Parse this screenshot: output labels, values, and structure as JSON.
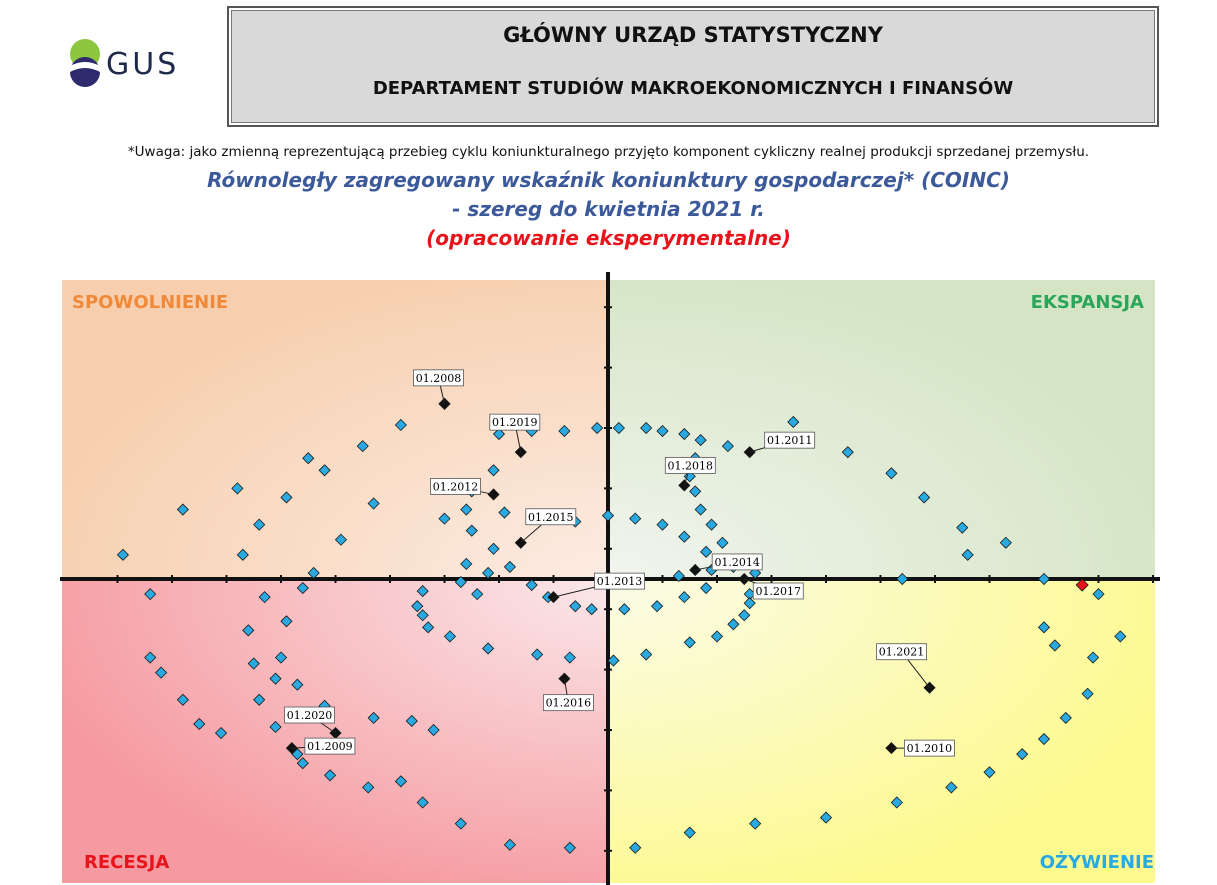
{
  "header": {
    "logo_text": "GUS",
    "line1": "GŁÓWNY URZĄD STATYSTYCZNY",
    "line2": "DEPARTAMENT STUDIÓW MAKROEKONOMICZNYCH I FINANSÓW"
  },
  "note": "*Uwaga: jako zmienną reprezentującą przebieg cyklu koniunkturalnego przyjęto komponent cykliczny realnej produkcji sprzedanej przemysłu.",
  "titles": {
    "line1": "Równoległy zagregowany wskaźnik koniunktury gospodarczej* (COINC)",
    "line2": "- szereg do kwietnia 2021 r.",
    "line3": "(opracowanie eksperymentalne)"
  },
  "colors": {
    "point_fill": "#29a9e0",
    "marker_fill": "#111111",
    "last_point_fill": "#e8131b",
    "title_blue": "#3c5a9a",
    "title_red": "#e8131b",
    "spowolnienie": "#f08a3a",
    "ekspansja": "#2aa65a",
    "recesja": "#e8131b",
    "ozywienie": "#29a9e0"
  },
  "chart_data": {
    "type": "scatter",
    "title": "Równoległy zagregowany wskaźnik koniunktury gospodarczej* (COINC)",
    "xlim": [
      -10,
      10
    ],
    "ylim": [
      -10,
      10
    ],
    "quadrants": {
      "top_left": "SPOWOLNIENIE",
      "top_right": "EKSPANSJA",
      "bottom_left": "RECESJA",
      "bottom_right": "OŻYWIENIE"
    },
    "series": [
      {
        "values": [
          [
            -3.0,
            5.8
          ],
          [
            -3.8,
            5.1
          ],
          [
            -4.5,
            4.4
          ],
          [
            -5.2,
            3.6
          ],
          [
            -5.9,
            2.7
          ],
          [
            -6.4,
            1.8
          ],
          [
            -6.7,
            0.8
          ],
          [
            -6.3,
            -0.6
          ],
          [
            -6.6,
            -1.7
          ],
          [
            -6.5,
            -2.8
          ],
          [
            -6.4,
            -4.0
          ],
          [
            -6.1,
            -4.9
          ],
          [
            -5.7,
            -5.8
          ],
          [
            -5.1,
            -6.5
          ],
          [
            -4.4,
            -6.9
          ],
          [
            -3.8,
            -6.7
          ],
          [
            -3.4,
            -7.4
          ],
          [
            -2.7,
            -8.1
          ],
          [
            -1.8,
            -8.8
          ],
          [
            -0.7,
            -8.9
          ],
          [
            0.5,
            -8.9
          ],
          [
            1.5,
            -8.4
          ],
          [
            2.7,
            -8.1
          ],
          [
            4.0,
            -7.9
          ],
          [
            5.3,
            -7.4
          ],
          [
            6.3,
            -6.9
          ],
          [
            7.0,
            -6.4
          ],
          [
            7.6,
            -5.8
          ],
          [
            8.0,
            -5.3
          ],
          [
            8.4,
            -4.6
          ],
          [
            8.8,
            -3.8
          ],
          [
            8.9,
            -2.6
          ],
          [
            9.4,
            -1.9
          ],
          [
            9.0,
            -0.5
          ],
          [
            -5.6,
            -0.3
          ],
          [
            -5.9,
            -1.4
          ],
          [
            -6.0,
            -2.6
          ],
          [
            -5.7,
            -3.5
          ],
          [
            -5.2,
            -4.2
          ],
          [
            -4.3,
            -4.6
          ],
          [
            -3.2,
            -5.0
          ],
          [
            -3.6,
            -4.7
          ],
          [
            -3.0,
            2.0
          ],
          [
            -4.3,
            2.5
          ],
          [
            -4.9,
            1.3
          ],
          [
            -5.4,
            0.2
          ],
          [
            -2.0,
            4.8
          ],
          [
            -1.4,
            4.9
          ],
          [
            -0.8,
            4.9
          ],
          [
            -0.2,
            5.0
          ],
          [
            0.2,
            5.0
          ],
          [
            0.7,
            5.0
          ],
          [
            1.0,
            4.9
          ],
          [
            1.4,
            4.8
          ],
          [
            1.7,
            4.6
          ],
          [
            2.2,
            4.4
          ],
          [
            1.6,
            4.0
          ],
          [
            1.5,
            3.4
          ],
          [
            1.6,
            2.9
          ],
          [
            1.7,
            2.3
          ],
          [
            1.9,
            1.8
          ],
          [
            2.1,
            1.2
          ],
          [
            2.5,
            0.6
          ],
          [
            2.7,
            0.2
          ],
          [
            2.3,
            0.4
          ],
          [
            1.9,
            0.3
          ],
          [
            1.3,
            0.1
          ],
          [
            -2.1,
            3.6
          ],
          [
            -2.5,
            2.9
          ],
          [
            -2.6,
            2.3
          ],
          [
            -2.5,
            1.6
          ],
          [
            -2.1,
            1.0
          ],
          [
            -1.8,
            0.4
          ],
          [
            -1.4,
            -0.2
          ],
          [
            -1.1,
            -0.6
          ],
          [
            -0.6,
            -0.9
          ],
          [
            -0.3,
            -1.0
          ],
          [
            0.3,
            -1.0
          ],
          [
            0.9,
            -0.9
          ],
          [
            1.4,
            -0.6
          ],
          [
            1.8,
            -0.3
          ],
          [
            -2.2,
            0.2
          ],
          [
            -2.6,
            0.5
          ],
          [
            -1.9,
            2.2
          ],
          [
            0.0,
            2.1
          ],
          [
            0.5,
            2.0
          ],
          [
            1.0,
            1.8
          ],
          [
            1.4,
            1.4
          ],
          [
            1.8,
            0.9
          ],
          [
            -1.2,
            2.1
          ],
          [
            -0.6,
            1.9
          ],
          [
            -2.7,
            -0.1
          ],
          [
            -2.4,
            -0.5
          ],
          [
            2.6,
            -0.5
          ],
          [
            2.6,
            -0.8
          ],
          [
            2.5,
            -1.2
          ],
          [
            2.3,
            -1.5
          ],
          [
            2.0,
            -1.9
          ],
          [
            1.5,
            -2.1
          ],
          [
            0.7,
            -2.5
          ],
          [
            0.1,
            -2.7
          ],
          [
            -0.7,
            -2.6
          ],
          [
            -1.3,
            -2.5
          ],
          [
            -2.2,
            -2.3
          ],
          [
            -2.9,
            -1.9
          ],
          [
            -3.3,
            -1.6
          ],
          [
            -3.4,
            -1.2
          ],
          [
            -3.5,
            -0.9
          ],
          [
            -3.4,
            -0.4
          ],
          [
            -5.5,
            4.0
          ],
          [
            -6.8,
            3.0
          ],
          [
            -7.8,
            2.3
          ],
          [
            -8.9,
            0.8
          ],
          [
            -8.4,
            -0.5
          ],
          [
            -8.4,
            -2.6
          ],
          [
            -8.2,
            -3.1
          ],
          [
            -7.8,
            -4.0
          ],
          [
            -7.5,
            -4.8
          ],
          [
            -7.1,
            -5.1
          ],
          [
            -6.1,
            -3.3
          ],
          [
            -5.6,
            -6.1
          ],
          [
            3.4,
            5.2
          ],
          [
            4.4,
            4.2
          ],
          [
            5.2,
            3.5
          ],
          [
            5.8,
            2.7
          ],
          [
            6.5,
            1.7
          ],
          [
            7.3,
            1.2
          ],
          [
            8.0,
            0.0
          ],
          [
            5.4,
            0.0
          ],
          [
            6.6,
            0.8
          ],
          [
            8.0,
            -1.6
          ],
          [
            8.2,
            -2.2
          ]
        ]
      }
    ],
    "last_point": [
      8.7,
      -0.2
    ],
    "annotated_points": [
      {
        "label": "01.2008",
        "x": -3.0,
        "y": 5.8
      },
      {
        "label": "01.2019",
        "x": -1.6,
        "y": 4.2
      },
      {
        "label": "01.2012",
        "x": -2.1,
        "y": 2.8
      },
      {
        "label": "01.2015",
        "x": -1.6,
        "y": 1.2
      },
      {
        "label": "01.2013",
        "x": -1.0,
        "y": -0.6
      },
      {
        "label": "01.2016",
        "x": -0.8,
        "y": -3.3
      },
      {
        "label": "01.2020",
        "x": -5.0,
        "y": -5.1
      },
      {
        "label": "01.2009",
        "x": -5.8,
        "y": -5.6
      },
      {
        "label": "01.2011",
        "x": 2.6,
        "y": 4.2
      },
      {
        "label": "01.2018",
        "x": 1.4,
        "y": 3.1
      },
      {
        "label": "01.2014",
        "x": 1.6,
        "y": 0.3
      },
      {
        "label": "01.2017",
        "x": 2.5,
        "y": 0.0
      },
      {
        "label": "01.2021",
        "x": 5.9,
        "y": -3.6
      },
      {
        "label": "01.2010",
        "x": 5.2,
        "y": -5.6
      }
    ]
  }
}
